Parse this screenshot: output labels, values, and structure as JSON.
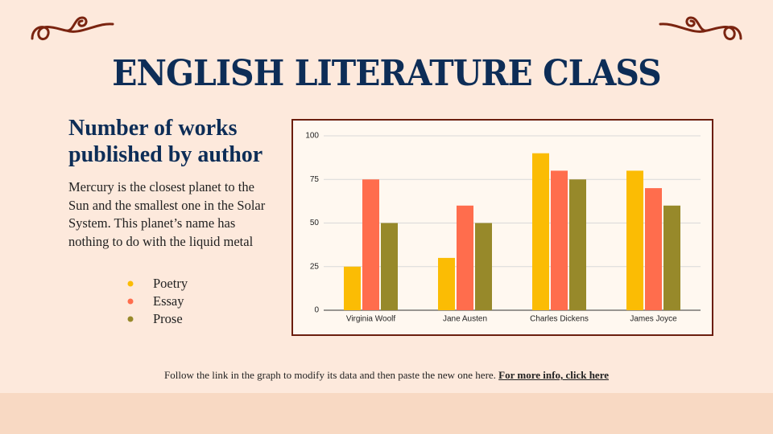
{
  "title": "ENGLISH LITERATURE CLASS",
  "subtitle": "Number of works published by author",
  "body": "Mercury is the closest planet to the Sun and the smallest one in the Solar System. This planet’s name has nothing to do with the liquid metal",
  "footer": {
    "text": "Follow the link in the graph to modify its data and then paste the new one here.",
    "link": "For more info, click here"
  },
  "chart_data": {
    "type": "bar",
    "categories": [
      "Virginia Woolf",
      "Jane Austen",
      "Charles Dickens",
      "James Joyce"
    ],
    "series": [
      {
        "name": "Poetry",
        "color": "#fbbc04",
        "values": [
          25,
          30,
          90,
          80
        ]
      },
      {
        "name": "Essay",
        "color": "#ff6d4d",
        "values": [
          75,
          60,
          80,
          70
        ]
      },
      {
        "name": "Prose",
        "color": "#97892a",
        "values": [
          50,
          50,
          75,
          60
        ]
      }
    ],
    "ylim": [
      0,
      100
    ],
    "yticks": [
      0,
      25,
      50,
      75,
      100
    ],
    "grid": true
  }
}
